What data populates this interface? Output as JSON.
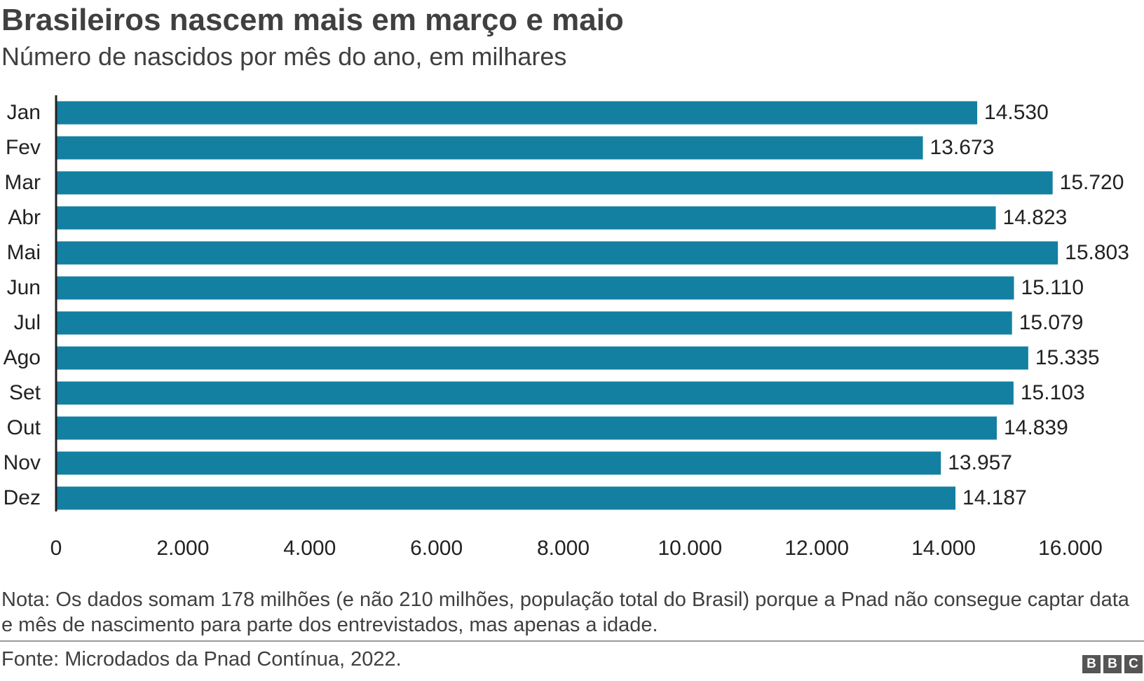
{
  "chart_data": {
    "type": "bar",
    "orientation": "horizontal",
    "title": "Brasileiros nascem mais em março e maio",
    "subtitle": "Número de nascidos por mês do ano, em milhares",
    "categories": [
      "Jan",
      "Fev",
      "Mar",
      "Abr",
      "Mai",
      "Jun",
      "Jul",
      "Ago",
      "Set",
      "Out",
      "Nov",
      "Dez"
    ],
    "values": [
      14530,
      13673,
      15720,
      14823,
      15803,
      15110,
      15079,
      15335,
      15103,
      14839,
      13957,
      14187
    ],
    "value_labels": [
      "14.530",
      "13.673",
      "15.720",
      "14.823",
      "15.803",
      "15.110",
      "15.079",
      "15.335",
      "15.103",
      "14.839",
      "13.957",
      "14.187"
    ],
    "color": "#1380a1",
    "xlim": [
      0,
      16000
    ],
    "xticks": [
      0,
      {
        "value": 2000,
        "label": "2.000"
      },
      {
        "value": 4000,
        "label": "4.000"
      },
      {
        "value": 6000,
        "label": "6.000"
      },
      {
        "value": 8000,
        "label": "8.000"
      },
      {
        "value": 10000,
        "label": "10.000"
      },
      {
        "value": 12000,
        "label": "12.000"
      },
      {
        "value": 14000,
        "label": "14.000"
      },
      {
        "value": 16000,
        "label": "16.000"
      }
    ],
    "grid": false,
    "note": "Nota: Os dados somam 178 milhões (e não 210 milhões, população total do Brasil) porque a Pnad não consegue captar data e mês de nascimento para parte dos entrevistados, mas apenas a idade.",
    "source": "Fonte: Microdados da Pnad Contínua, 2022.",
    "logo": [
      "B",
      "B",
      "C"
    ]
  }
}
